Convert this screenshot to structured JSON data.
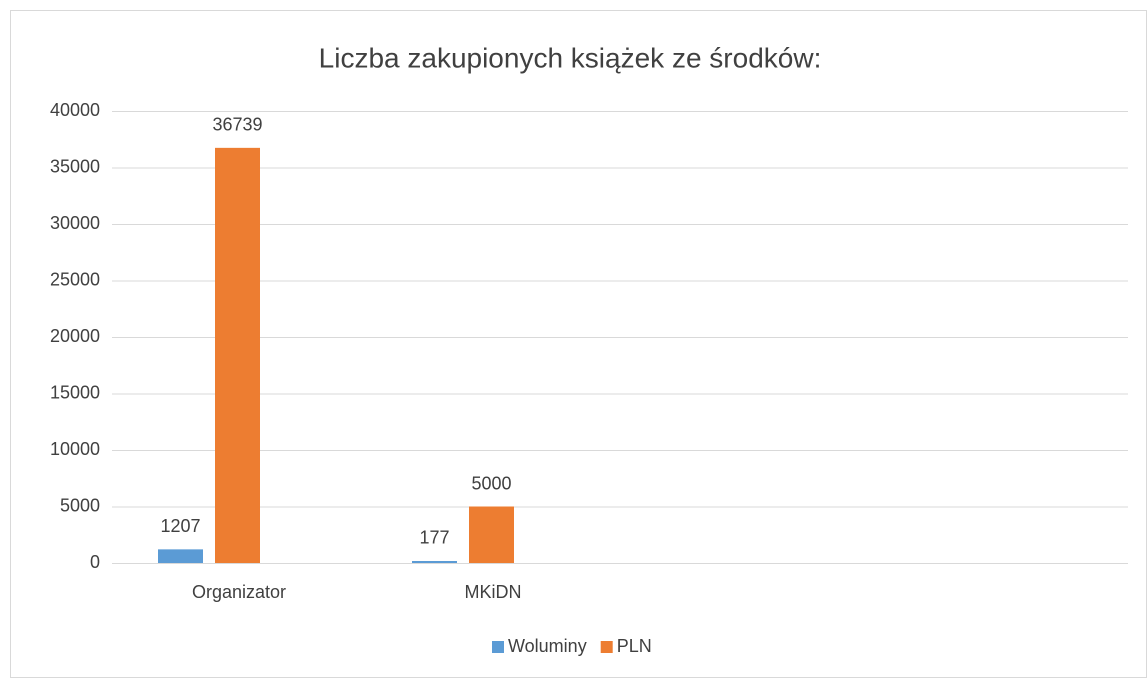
{
  "chart_data": {
    "type": "bar",
    "title": "Liczba zakupionych książek ze środków:",
    "categories": [
      "Organizator",
      "MKiDN",
      null,
      null
    ],
    "series": [
      {
        "name": "Woluminy",
        "color": "#5b9bd5",
        "values": [
          1207,
          177,
          null,
          null
        ]
      },
      {
        "name": "PLN",
        "color": "#ed7d31",
        "values": [
          36739,
          5000,
          null,
          null
        ]
      }
    ],
    "ylim": [
      0,
      40000
    ],
    "yticks": [
      0,
      5000,
      10000,
      15000,
      20000,
      25000,
      30000,
      35000,
      40000
    ],
    "grid": true,
    "legend": "bottom"
  }
}
